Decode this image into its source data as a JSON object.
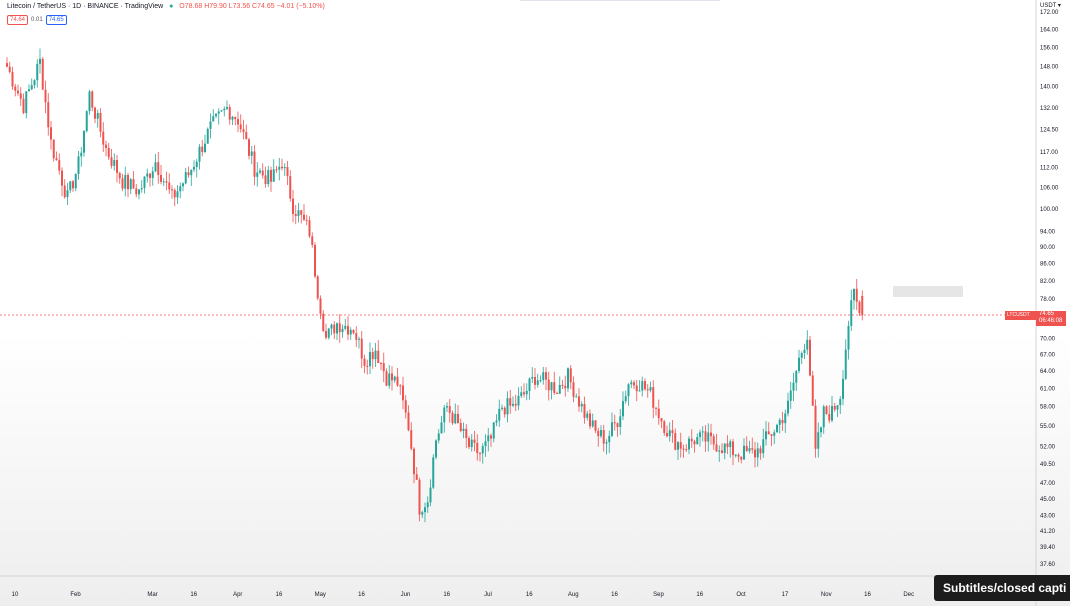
{
  "header": {
    "title": "Litecoin / TetherUS · 1D · BINANCE · TradingView",
    "ohlc": "O78.68 H79.90 L73.56 C74.65 −4.01 (−5.10%)",
    "sell_price": "74.64",
    "spread": "0.01",
    "buy_price": "74.65"
  },
  "price_scale": {
    "currency": "USDT",
    "last_symbol": "LTCUSDT",
    "last_price": "74.65",
    "countdown": "06:46:08"
  },
  "overlay": {
    "subtitles_label": "Subtitles/closed capti"
  },
  "colors": {
    "up": "#26a69a",
    "down": "#ef5350",
    "last_price": "#ef5350"
  },
  "chart_data": {
    "type": "candlestick",
    "scale": "log",
    "ylim": [
      36,
      180
    ],
    "x_labels": [
      {
        "label": "10",
        "day": 0
      },
      {
        "label": "Feb",
        "day": 22
      },
      {
        "label": "Mar",
        "day": 50
      },
      {
        "label": "16",
        "day": 65
      },
      {
        "label": "Apr",
        "day": 81
      },
      {
        "label": "16",
        "day": 96
      },
      {
        "label": "May",
        "day": 111
      },
      {
        "label": "16",
        "day": 126
      },
      {
        "label": "Jun",
        "day": 142
      },
      {
        "label": "16",
        "day": 157
      },
      {
        "label": "Jul",
        "day": 172
      },
      {
        "label": "16",
        "day": 187
      },
      {
        "label": "Aug",
        "day": 203
      },
      {
        "label": "16",
        "day": 218
      },
      {
        "label": "Sep",
        "day": 234
      },
      {
        "label": "16",
        "day": 249
      },
      {
        "label": "Oct",
        "day": 264
      },
      {
        "label": "17",
        "day": 280
      },
      {
        "label": "Nov",
        "day": 295
      },
      {
        "label": "16",
        "day": 310
      },
      {
        "label": "Dec",
        "day": 325
      }
    ],
    "y_ticks": [
      172,
      164,
      156,
      148,
      140,
      132,
      124.5,
      117,
      112,
      106,
      100,
      94,
      90,
      86,
      82,
      78,
      74,
      70,
      67,
      64,
      61,
      58,
      55,
      52,
      49.5,
      47,
      45,
      43,
      41.2,
      39.4,
      37.6
    ],
    "y_labels": [
      "172.00",
      "164.00",
      "156.00",
      "148.00",
      "140.00",
      "132.00",
      "124.50",
      "117.00",
      "112.00",
      "106.00",
      "100.00",
      "94.00",
      "90.00",
      "86.00",
      "82.00",
      "78.00",
      "74.00",
      "70.00",
      "67.00",
      "64.00",
      "61.00",
      "58.00",
      "55.00",
      "52.00",
      "49.50",
      "47.00",
      "45.00",
      "43.00",
      "41.20",
      "39.40",
      "37.60"
    ],
    "anchors": [
      [
        0,
        148
      ],
      [
        6,
        133
      ],
      [
        12,
        150
      ],
      [
        16,
        120
      ],
      [
        22,
        103
      ],
      [
        26,
        113
      ],
      [
        30,
        137
      ],
      [
        36,
        118
      ],
      [
        42,
        108
      ],
      [
        48,
        105
      ],
      [
        54,
        114
      ],
      [
        60,
        103
      ],
      [
        66,
        110
      ],
      [
        74,
        125
      ],
      [
        80,
        132
      ],
      [
        84,
        128
      ],
      [
        90,
        112
      ],
      [
        96,
        108
      ],
      [
        100,
        114
      ],
      [
        104,
        101
      ],
      [
        110,
        94
      ],
      [
        113,
        80
      ],
      [
        116,
        70
      ],
      [
        120,
        73
      ],
      [
        126,
        72
      ],
      [
        130,
        66
      ],
      [
        134,
        68
      ],
      [
        138,
        63
      ],
      [
        142,
        62
      ],
      [
        146,
        55
      ],
      [
        150,
        44
      ],
      [
        153,
        45
      ],
      [
        156,
        53
      ],
      [
        160,
        58
      ],
      [
        164,
        55
      ],
      [
        168,
        52
      ],
      [
        172,
        51
      ],
      [
        176,
        53
      ],
      [
        180,
        58
      ],
      [
        184,
        58
      ],
      [
        188,
        60
      ],
      [
        192,
        63
      ],
      [
        196,
        62
      ],
      [
        200,
        61
      ],
      [
        204,
        63
      ],
      [
        206,
        61
      ],
      [
        210,
        57
      ],
      [
        214,
        54
      ],
      [
        218,
        53
      ],
      [
        222,
        56
      ],
      [
        226,
        62
      ],
      [
        230,
        62
      ],
      [
        234,
        60
      ],
      [
        238,
        56
      ],
      [
        242,
        53
      ],
      [
        246,
        52
      ],
      [
        250,
        53
      ],
      [
        254,
        53
      ],
      [
        260,
        52
      ],
      [
        266,
        51
      ],
      [
        272,
        51
      ],
      [
        280,
        55
      ],
      [
        284,
        58
      ],
      [
        288,
        66
      ],
      [
        291,
        71
      ],
      [
        294,
        51
      ],
      [
        297,
        57
      ],
      [
        300,
        57
      ],
      [
        303,
        60
      ],
      [
        306,
        73
      ],
      [
        308,
        79
      ],
      [
        310,
        75
      ]
    ],
    "last_candle": {
      "open": 78.68,
      "high": 79.9,
      "low": 73.56,
      "close": 74.65
    }
  }
}
